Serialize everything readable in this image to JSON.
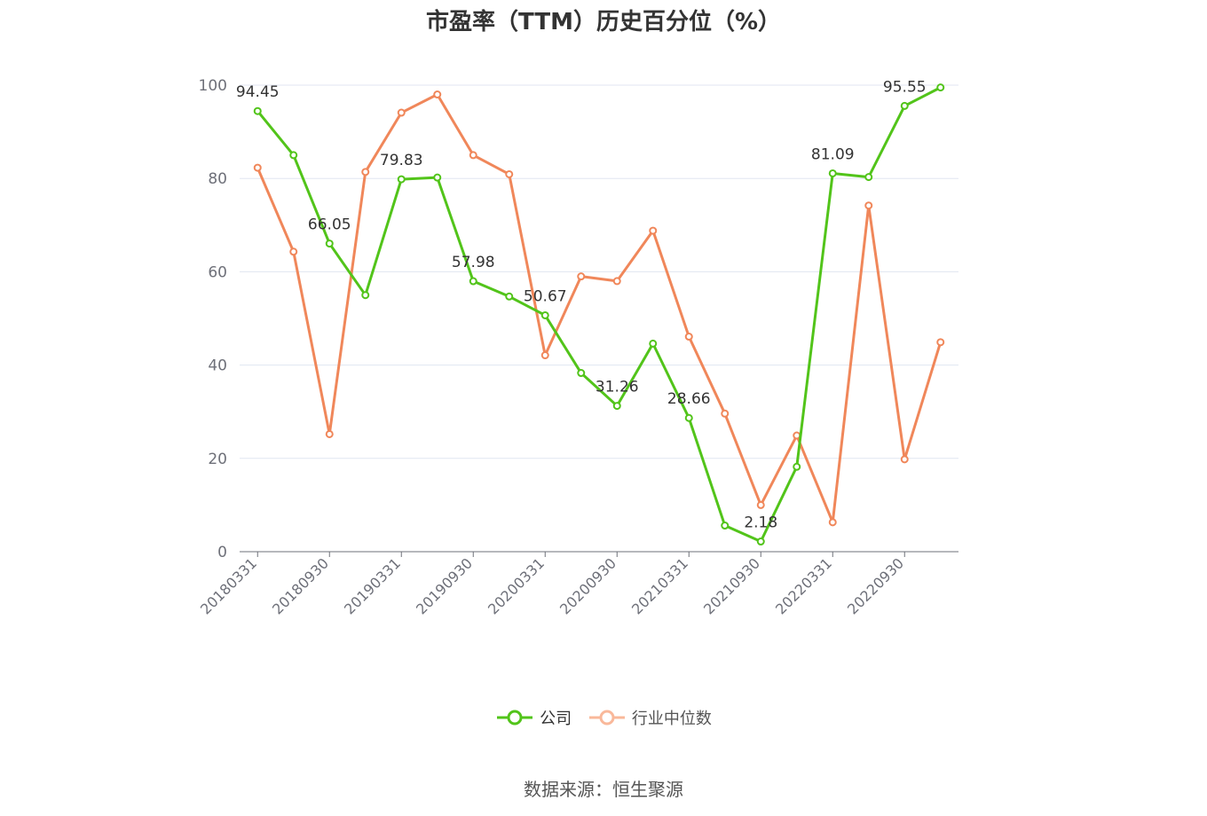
{
  "chart_data": {
    "type": "line",
    "title": "市盈率（TTM）历史百分位（%）",
    "x_tick_labels": [
      "20180331",
      "20180930",
      "20190331",
      "20190930",
      "20200331",
      "20200930",
      "20210331",
      "20210930",
      "20220331",
      "20220930"
    ],
    "x": [
      "20180331",
      "20180630",
      "20180930",
      "20181231",
      "20190331",
      "20190630",
      "20190930",
      "20191231",
      "20200331",
      "20200630",
      "20200930",
      "20201231",
      "20210331",
      "20210630",
      "20210930",
      "20211231",
      "20220331",
      "20220630",
      "20220930",
      "20221231"
    ],
    "ylim": [
      0,
      100
    ],
    "y_ticks": [
      0,
      20,
      40,
      60,
      80,
      100
    ],
    "grid": true,
    "legend_position": "bottom",
    "series": [
      {
        "name": "公司",
        "color": "#52c41a",
        "values": [
          94.45,
          85.0,
          66.05,
          55.0,
          79.83,
          80.2,
          57.98,
          54.7,
          50.67,
          38.3,
          31.26,
          44.6,
          28.66,
          5.6,
          2.18,
          18.2,
          81.09,
          80.3,
          95.55,
          99.5
        ],
        "labels": {
          "0": "94.45",
          "2": "66.05",
          "4": "79.83",
          "6": "57.98",
          "8": "50.67",
          "10": "31.26",
          "12": "28.66",
          "14": "2.18",
          "16": "81.09",
          "18": "95.55"
        }
      },
      {
        "name": "行业中位数",
        "color": "#f0875a",
        "values": [
          82.3,
          64.3,
          25.2,
          81.4,
          94.1,
          98.0,
          85.0,
          80.9,
          42.1,
          59.0,
          58.0,
          68.8,
          46.1,
          29.6,
          10.0,
          24.9,
          6.3,
          74.2,
          19.8,
          44.9
        ]
      }
    ]
  },
  "legend": {
    "company": "公司",
    "industry": "行业中位数"
  },
  "source_text": "数据来源：恒生聚源"
}
